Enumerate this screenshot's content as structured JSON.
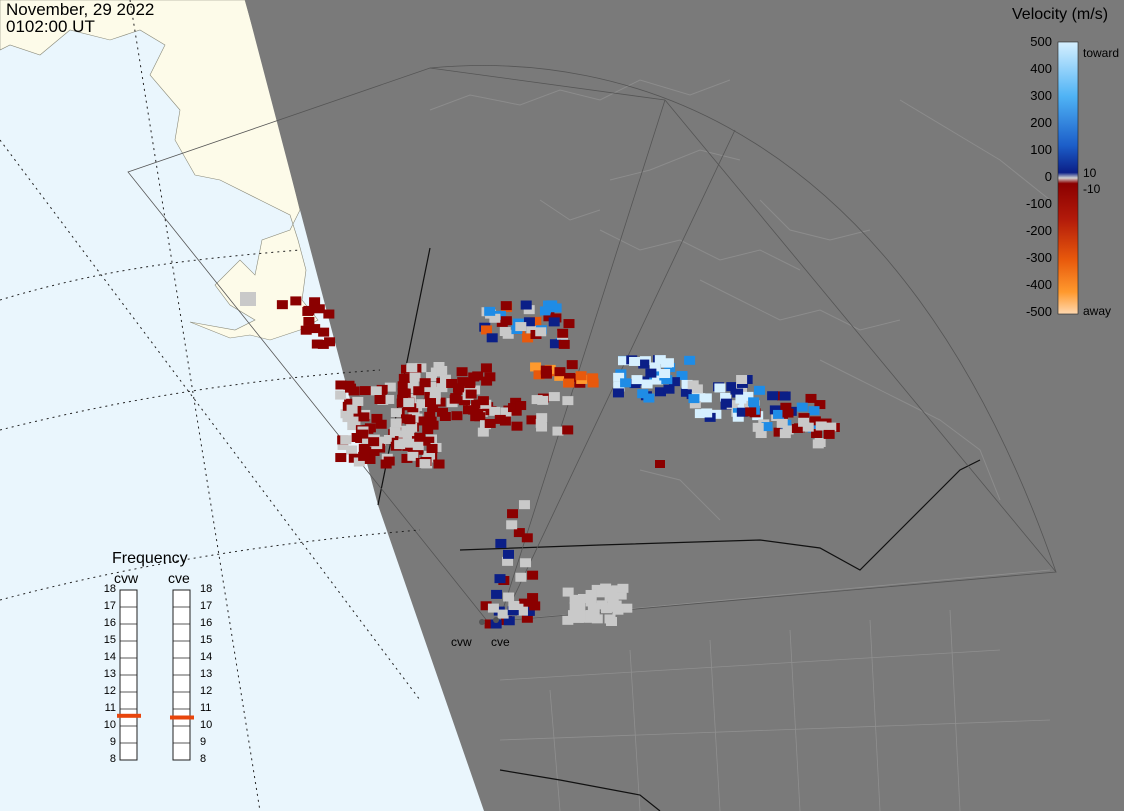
{
  "header": {
    "date": "November, 29 2022",
    "time": "0102:00 UT"
  },
  "colorbar": {
    "title": "Velocity (m/s)",
    "ticks": [
      "500",
      "400",
      "300",
      "200",
      "100",
      "0",
      "-100",
      "-200",
      "-300",
      "-400",
      "-500"
    ],
    "inner_labels": [
      "10",
      "-10"
    ],
    "toward_label": "toward",
    "away_label": "away",
    "colors": {
      "toward_high": "#d6f0ff",
      "toward_mid": "#1f8ce6",
      "toward_low": "#0b1f87",
      "zero": "#d0d0d0",
      "away_low": "#8b0000",
      "away_mid": "#e8590c",
      "away_high": "#ffd8b0"
    }
  },
  "frequency_panel": {
    "title": "Frequency",
    "radars": [
      {
        "label": "cvw",
        "freq_mhz": 10.6
      },
      {
        "label": "cve",
        "freq_mhz": 10.5
      }
    ],
    "scale": [
      "18",
      "17",
      "16",
      "15",
      "14",
      "13",
      "12",
      "11",
      "10",
      "9",
      "8"
    ],
    "range_mhz": [
      8,
      18
    ]
  },
  "sites": [
    {
      "label": "cvw"
    },
    {
      "label": "cve"
    }
  ],
  "map": {
    "night_color": "#7a7a7a",
    "day_ocean": "#eaf6fd",
    "day_land": "#fdfbe9",
    "ground_scatter_color": "#c9c9c9"
  }
}
